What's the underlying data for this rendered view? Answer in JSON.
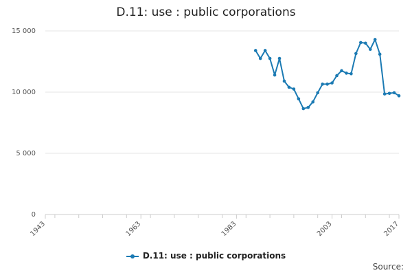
{
  "colors": {
    "series": "#1b7ab3",
    "grid": "#e6e6e6",
    "axis": "#cccccc"
  },
  "source_label": "Source:",
  "chart_data": {
    "type": "line",
    "title": "D.11: use : public corporations",
    "xlabel": "",
    "ylabel": "",
    "xlim": [
      1943,
      2017
    ],
    "ylim": [
      0,
      15000
    ],
    "x_ticks": [
      1943,
      1963,
      1983,
      2003,
      2017
    ],
    "y_ticks": [
      0,
      5000,
      10000,
      15000
    ],
    "y_tick_labels": [
      "0",
      "5 000",
      "10 000",
      "15 000"
    ],
    "grid": true,
    "legend": "bottom",
    "series": [
      {
        "name": "D.11: use : public corporations",
        "x": [
          1987,
          1988,
          1989,
          1990,
          1991,
          1992,
          1993,
          1994,
          1995,
          1996,
          1997,
          1998,
          1999,
          2000,
          2001,
          2002,
          2003,
          2004,
          2005,
          2006,
          2007,
          2008,
          2009,
          2010,
          2011,
          2012,
          2013,
          2014,
          2015,
          2016,
          2017
        ],
        "y": [
          13400,
          12750,
          13400,
          12750,
          11400,
          12750,
          10900,
          10400,
          10250,
          9450,
          8650,
          8750,
          9200,
          9950,
          10650,
          10650,
          10750,
          11350,
          11750,
          11550,
          11500,
          13150,
          14050,
          14000,
          13500,
          14300,
          13100,
          9850,
          9900,
          9950,
          9700
        ]
      }
    ]
  }
}
